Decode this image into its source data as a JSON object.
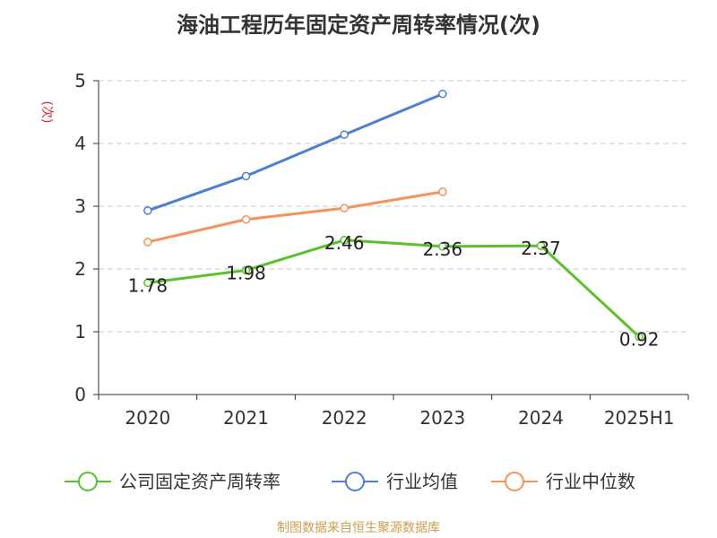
{
  "chart_data": {
    "type": "line",
    "title": "海油工程历年固定资产周转率情况(次)",
    "ylabel": "(次)",
    "xlabel": "",
    "categories": [
      "2020",
      "2021",
      "2022",
      "2023",
      "2024",
      "2025H1"
    ],
    "ylim": [
      0,
      5
    ],
    "yticks": [
      0,
      1,
      2,
      3,
      4,
      5
    ],
    "grid": true,
    "legend_position": "bottom",
    "series": [
      {
        "name": "公司固定资产周转率",
        "color": "#5ac12a",
        "values": [
          1.78,
          1.98,
          2.46,
          2.36,
          2.37,
          0.92
        ],
        "labels": [
          "1.78",
          "1.98",
          "2.46",
          "2.36",
          "2.37",
          "0.92"
        ]
      },
      {
        "name": "行业均值",
        "color": "#4e7fd4",
        "values": [
          2.93,
          3.48,
          4.14,
          4.79,
          null,
          null
        ]
      },
      {
        "name": "行业中位数",
        "color": "#f4935a",
        "values": [
          2.43,
          2.79,
          2.97,
          3.23,
          null,
          null
        ]
      }
    ]
  },
  "colors": {
    "ylabel": "#d9262e",
    "source": "#c9a04c"
  },
  "source_text": "制图数据来自恒生聚源数据库"
}
